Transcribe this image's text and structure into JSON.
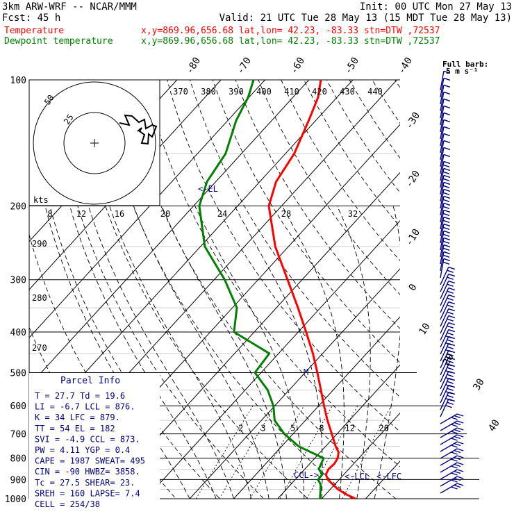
{
  "header": {
    "model": "3km ARW-WRF -- NCAR/MMM",
    "init": "Init: 00 UTC Mon 27 May 13",
    "fcst": "Fcst:    45 h",
    "valid": "Valid: 21 UTC Tue 28 May 13 (15 MDT Tue 28 May 13)",
    "temp_label": "Temperature",
    "temp_info": "x,y=869.96,656.68   lat,lon= 42.23, -83.33  stn=DTW ,72537",
    "dew_label": "Dewpoint temperature",
    "dew_info": "x,y=869.96,656.68   lat,lon= 42.23, -83.33  stn=DTW ,72537"
  },
  "colors": {
    "temperature": "#ff0000",
    "dewpoint": "#008000",
    "accent": "#000080",
    "grid": "#000000"
  },
  "parcel_info": {
    "title": "Parcel Info",
    "lines": [
      "T  =   27.7  Td =  19.6",
      "LI =   -6.7  LCL =  876.",
      "K  =     34  LFC =  879.",
      "TT =     54  EL  =   182",
      "SVI =  -4.9  CCL =  873.",
      "PW =   4.11  YGP =   0.4",
      "CAPE = 1987  SWEAT=  495",
      "CIN =   -90  HWBZ= 3858.",
      "Tc =   27.5  SHEAR=  23.",
      "SREH =  160  LAPSE=  7.4",
      "CELL = 254/38"
    ]
  },
  "barb_legend": {
    "title": "Full barb:",
    "units": "5 m s⁻¹"
  },
  "hodograph": {
    "units_label": "kts",
    "ring_labels": [
      "25",
      "50"
    ],
    "speed_ticks": [
      "8",
      "12",
      "16",
      "20",
      "24",
      "28",
      "32"
    ]
  },
  "annotations": {
    "el": "<-EL",
    "ccl": "CCL->",
    "lcl": "<-LCL",
    "lfc": "<-LFC",
    "m": "M"
  },
  "chart_data": {
    "type": "line",
    "title": "",
    "xlabel": "",
    "ylabel": "",
    "pressure_levels": [
      "100",
      "200",
      "300",
      "400",
      "500",
      "600",
      "700",
      "800",
      "900",
      "1000"
    ],
    "isotherm_labels": [
      "-80",
      "-70",
      "-60",
      "-50",
      "-40",
      "-30",
      "-20",
      "-10",
      "0",
      "10",
      "20",
      "30",
      "40"
    ],
    "theta_labels": [
      "290",
      "280",
      "270"
    ],
    "theta_e_labels": [
      "370",
      "380",
      "390",
      "400",
      "410",
      "420",
      "430",
      "440"
    ],
    "mixing_ratio_labels": [
      "2",
      "3",
      "5",
      "8",
      "12",
      "20"
    ],
    "series": [
      {
        "name": "Temperature",
        "points": [
          {
            "p": 1000,
            "t": 27.7
          },
          {
            "p": 975,
            "t": 24.5
          },
          {
            "p": 950,
            "t": 21.8
          },
          {
            "p": 925,
            "t": 19.6
          },
          {
            "p": 900,
            "t": 17.4
          },
          {
            "p": 875,
            "t": 15.9
          },
          {
            "p": 850,
            "t": 15.4
          },
          {
            "p": 825,
            "t": 15.6
          },
          {
            "p": 800,
            "t": 15.2
          },
          {
            "p": 775,
            "t": 14.2
          },
          {
            "p": 750,
            "t": 12.3
          },
          {
            "p": 700,
            "t": 8.8
          },
          {
            "p": 650,
            "t": 5.0
          },
          {
            "p": 600,
            "t": 1.2
          },
          {
            "p": 550,
            "t": -2.8
          },
          {
            "p": 500,
            "t": -7.2
          },
          {
            "p": 450,
            "t": -12.2
          },
          {
            "p": 400,
            "t": -18.2
          },
          {
            "p": 350,
            "t": -25.1
          },
          {
            "p": 300,
            "t": -33.3
          },
          {
            "p": 250,
            "t": -43.0
          },
          {
            "p": 200,
            "t": -52.9
          },
          {
            "p": 175,
            "t": -56.3
          },
          {
            "p": 150,
            "t": -58.0
          },
          {
            "p": 125,
            "t": -61.6
          },
          {
            "p": 110,
            "t": -64.3
          },
          {
            "p": 100,
            "t": -67.3
          }
        ]
      },
      {
        "name": "Dewpoint temperature",
        "points": [
          {
            "p": 1000,
            "t": 19.6
          },
          {
            "p": 950,
            "t": 17.8
          },
          {
            "p": 925,
            "t": 16.8
          },
          {
            "p": 900,
            "t": 15.2
          },
          {
            "p": 875,
            "t": 15.1
          },
          {
            "p": 850,
            "t": 13.2
          },
          {
            "p": 800,
            "t": 12.0
          },
          {
            "p": 750,
            "t": 3.9
          },
          {
            "p": 700,
            "t": -2.0
          },
          {
            "p": 650,
            "t": -7.0
          },
          {
            "p": 600,
            "t": -10.3
          },
          {
            "p": 550,
            "t": -14.9
          },
          {
            "p": 500,
            "t": -21.4
          },
          {
            "p": 450,
            "t": -22.1
          },
          {
            "p": 400,
            "t": -34.6
          },
          {
            "p": 350,
            "t": -39.0
          },
          {
            "p": 300,
            "t": -47.6
          },
          {
            "p": 250,
            "t": -59.0
          },
          {
            "p": 200,
            "t": -68.7
          },
          {
            "p": 175,
            "t": -72.0
          },
          {
            "p": 150,
            "t": -73.6
          },
          {
            "p": 125,
            "t": -78.1
          },
          {
            "p": 110,
            "t": -80.2
          },
          {
            "p": 100,
            "t": -82.6
          }
        ]
      }
    ]
  }
}
